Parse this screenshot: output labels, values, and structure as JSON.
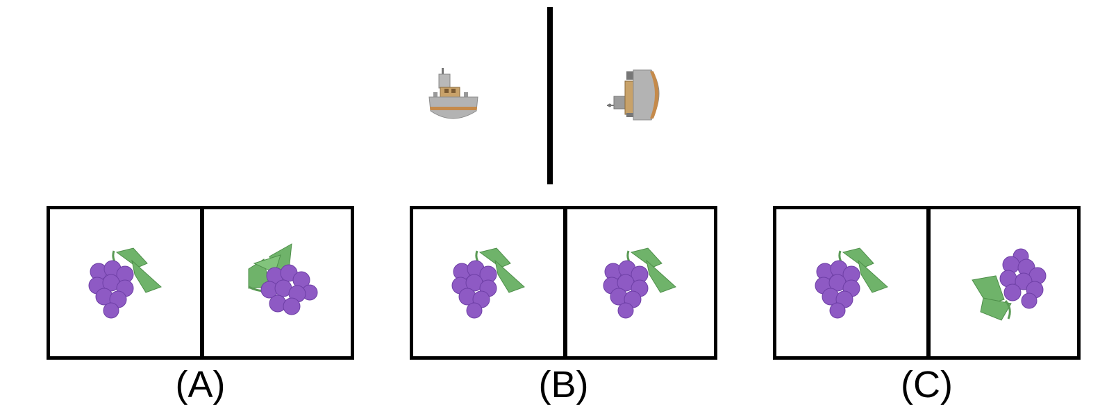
{
  "reference": {
    "left_image": "ship-front-view-icon",
    "right_image": "ship-side-view-rotated-icon"
  },
  "options": [
    {
      "label": "(A)",
      "left_image": "grapes-upright-icon",
      "right_image": "grapes-rotated-icon"
    },
    {
      "label": "(B)",
      "left_image": "grapes-upright-icon",
      "right_image": "grapes-upright-icon"
    },
    {
      "label": "(C)",
      "left_image": "grapes-upright-icon",
      "right_image": "grapes-flipped-icon"
    }
  ],
  "colors": {
    "grape": "#8e5ac4",
    "grape_light": "#a77ad6",
    "grape_dark": "#6e3fa6",
    "leaf": "#6fb36a",
    "leaf_dark": "#4e8f4a",
    "hull": "#a9a9a9",
    "stripe": "#c58a4a"
  }
}
